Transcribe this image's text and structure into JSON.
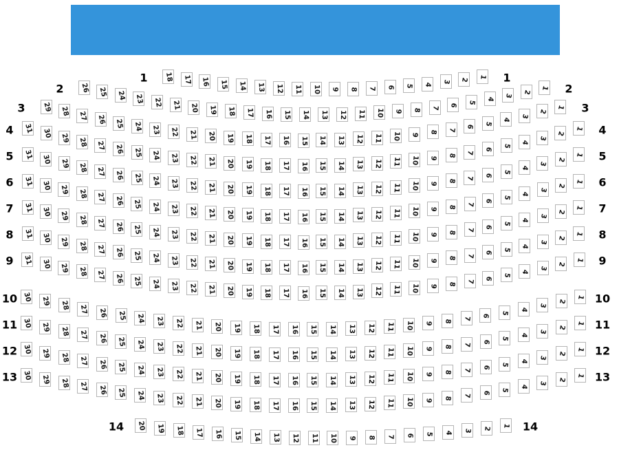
{
  "stage": {
    "color": "#3494db"
  },
  "colors": {
    "seat_fill": "#ffffff",
    "seat_border": "#b4b4b4",
    "seat_number": "#141414",
    "row_label": "#000000"
  },
  "seatmap": {
    "rows": [
      {
        "label": "1",
        "seats": [
          18,
          17,
          16,
          15,
          14,
          13,
          12,
          11,
          10,
          9,
          8,
          7,
          6,
          5,
          4,
          3,
          2,
          1
        ]
      },
      {
        "label": "2",
        "seats": [
          26,
          25,
          24,
          23,
          22,
          21,
          20,
          19,
          18,
          17,
          16,
          15,
          14,
          13,
          12,
          11,
          10,
          9,
          8,
          7,
          6,
          5,
          4,
          3,
          2,
          1
        ]
      },
      {
        "label": "3",
        "seats": [
          29,
          28,
          27,
          26,
          25,
          24,
          23,
          22,
          21,
          20,
          19,
          18,
          17,
          16,
          15,
          14,
          13,
          12,
          11,
          10,
          9,
          8,
          7,
          6,
          5,
          4,
          3,
          2,
          1
        ]
      },
      {
        "label": "4",
        "seats": [
          31,
          30,
          29,
          28,
          27,
          26,
          25,
          24,
          23,
          22,
          21,
          20,
          19,
          18,
          17,
          16,
          15,
          14,
          13,
          12,
          11,
          10,
          9,
          8,
          7,
          6,
          5,
          4,
          3,
          2,
          1
        ]
      },
      {
        "label": "5",
        "seats": [
          31,
          30,
          29,
          28,
          27,
          26,
          25,
          24,
          23,
          22,
          21,
          20,
          19,
          18,
          17,
          16,
          15,
          14,
          13,
          12,
          11,
          10,
          9,
          8,
          7,
          6,
          5,
          4,
          3,
          2,
          1
        ]
      },
      {
        "label": "6",
        "seats": [
          31,
          30,
          29,
          28,
          27,
          26,
          25,
          24,
          23,
          22,
          21,
          20,
          19,
          18,
          17,
          16,
          15,
          14,
          13,
          12,
          11,
          10,
          9,
          8,
          7,
          6,
          5,
          4,
          3,
          2,
          1
        ]
      },
      {
        "label": "7",
        "seats": [
          31,
          30,
          29,
          28,
          27,
          26,
          25,
          24,
          23,
          22,
          21,
          20,
          19,
          18,
          17,
          16,
          15,
          14,
          13,
          12,
          11,
          10,
          9,
          8,
          7,
          6,
          5,
          4,
          3,
          2,
          1
        ]
      },
      {
        "label": "8",
        "seats": [
          31,
          30,
          29,
          28,
          27,
          26,
          25,
          24,
          23,
          22,
          21,
          20,
          19,
          18,
          17,
          16,
          15,
          14,
          13,
          12,
          11,
          10,
          9,
          8,
          7,
          6,
          5,
          4,
          3,
          2,
          1
        ]
      },
      {
        "label": "9",
        "seats": [
          31,
          30,
          29,
          28,
          27,
          26,
          25,
          24,
          23,
          22,
          21,
          20,
          19,
          18,
          17,
          16,
          15,
          14,
          13,
          12,
          11,
          10,
          9,
          8,
          7,
          6,
          5,
          4,
          3,
          2,
          1
        ]
      },
      {
        "label": "10",
        "seats": [
          30,
          29,
          28,
          27,
          26,
          25,
          24,
          23,
          22,
          21,
          20,
          19,
          18,
          17,
          16,
          15,
          14,
          13,
          12,
          11,
          10,
          9,
          8,
          7,
          6,
          5,
          4,
          3,
          2,
          1
        ]
      },
      {
        "label": "11",
        "seats": [
          30,
          29,
          28,
          27,
          26,
          25,
          24,
          23,
          22,
          21,
          20,
          19,
          18,
          17,
          16,
          15,
          14,
          13,
          12,
          11,
          10,
          9,
          8,
          7,
          6,
          5,
          4,
          3,
          2,
          1
        ]
      },
      {
        "label": "12",
        "seats": [
          30,
          29,
          28,
          27,
          26,
          25,
          24,
          23,
          22,
          21,
          20,
          19,
          18,
          17,
          16,
          15,
          14,
          13,
          12,
          11,
          10,
          9,
          8,
          7,
          6,
          5,
          4,
          3,
          2,
          1
        ]
      },
      {
        "label": "13",
        "seats": [
          30,
          29,
          28,
          27,
          26,
          25,
          24,
          23,
          22,
          21,
          20,
          19,
          18,
          17,
          16,
          15,
          14,
          13,
          12,
          11,
          10,
          9,
          8,
          7,
          6,
          5,
          4,
          3,
          2,
          1
        ]
      },
      {
        "label": "14",
        "seats": [
          20,
          19,
          18,
          17,
          16,
          15,
          14,
          13,
          12,
          11,
          10,
          9,
          8,
          7,
          6,
          5,
          4,
          3,
          2,
          1
        ]
      }
    ]
  }
}
